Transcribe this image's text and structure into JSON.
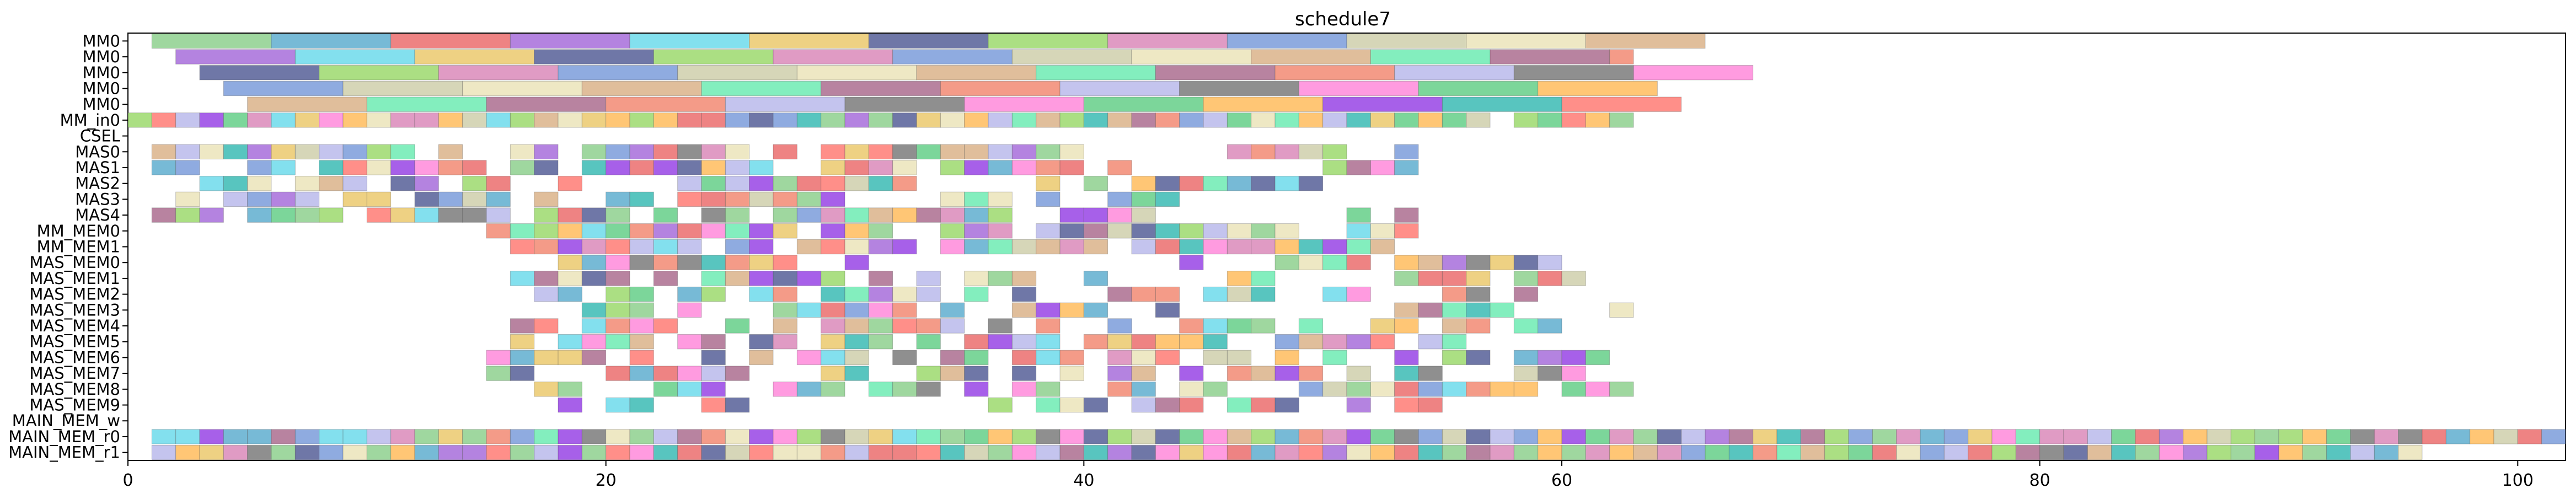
{
  "chart_data": {
    "type": "gantt",
    "title": "schedule7",
    "xlabel": "",
    "ylabel": "",
    "xlim": [
      0,
      102
    ],
    "x_ticks": [
      0,
      20,
      40,
      60,
      80,
      100
    ],
    "grid": false,
    "legend": "none",
    "rows": [
      "MM0",
      "MM0",
      "MM0",
      "MM0",
      "MM0",
      "MM_in0",
      "CSEL",
      "MAS0",
      "MAS1",
      "MAS2",
      "MAS3",
      "MAS4",
      "MM_MEM0",
      "MM_MEM1",
      "MAS_MEM0",
      "MAS_MEM1",
      "MAS_MEM2",
      "MAS_MEM3",
      "MAS_MEM4",
      "MAS_MEM5",
      "MAS_MEM6",
      "MAS_MEM7",
      "MAS_MEM8",
      "MAS_MEM9",
      "MAIN_MEM_w",
      "MAIN_MEM_r0",
      "MAIN_MEM_r1"
    ],
    "palette": [
      "#7fc97f",
      "#4aa3c8",
      "#e85a5a",
      "#9b59d6",
      "#5ad6e8",
      "#e8c25a",
      "#3f4a8a",
      "#8fd45a",
      "#d67ab0",
      "#6a8fd6",
      "#c8c8a0",
      "#e8e0b0",
      "#d6a87a",
      "#5ae8a8",
      "#a05a80",
      "#f07a60",
      "#b0b0e8",
      "#6a6a6a",
      "#ff7ad6",
      "#50c878",
      "#ffb347",
      "#8a2be2",
      "#20b2aa",
      "#ff6961"
    ],
    "generation": {
      "note_bands": "rows 0-4 long bands; rows 5,7-23,25,26 unit blocks",
      "band_rows": [
        {
          "row": 0,
          "start": 1,
          "end": 66,
          "seg": 5
        },
        {
          "row": 1,
          "start": 2,
          "end": 63,
          "seg": 5
        },
        {
          "row": 2,
          "start": 3,
          "end": 68,
          "seg": 5
        },
        {
          "row": 3,
          "start": 4,
          "end": 64,
          "seg": 5
        },
        {
          "row": 4,
          "start": 5,
          "end": 65,
          "seg": 5
        }
      ],
      "block_rows": [
        {
          "row": 5,
          "ranges": [
            [
              0,
              57
            ],
            [
              58,
              63
            ]
          ],
          "density": 1.0
        },
        {
          "row": 7,
          "ranges": [
            [
              1,
              28
            ],
            [
              28,
              40
            ],
            [
              46,
              55
            ]
          ],
          "density": 0.8
        },
        {
          "row": 8,
          "ranges": [
            [
              1,
              33
            ],
            [
              34,
              42
            ],
            [
              50,
              55
            ]
          ],
          "density": 0.8
        },
        {
          "row": 9,
          "ranges": [
            [
              1,
              34
            ],
            [
              36,
              50
            ]
          ],
          "density": 0.7
        },
        {
          "row": 10,
          "ranges": [
            [
              1,
              32
            ],
            [
              34,
              46
            ]
          ],
          "density": 0.7
        },
        {
          "row": 11,
          "ranges": [
            [
              1,
              38
            ],
            [
              39,
              43
            ],
            [
              51,
              54
            ]
          ],
          "density": 0.8
        },
        {
          "row": 12,
          "ranges": [
            [
              15,
              55
            ]
          ],
          "density": 0.85
        },
        {
          "row": 13,
          "ranges": [
            [
              15,
              55
            ]
          ],
          "density": 0.85
        },
        {
          "row": 14,
          "ranges": [
            [
              18,
              33
            ],
            [
              43,
              60
            ]
          ],
          "density": 0.6
        },
        {
          "row": 15,
          "ranges": [
            [
              16,
              41
            ],
            [
              46,
              62
            ]
          ],
          "density": 0.65
        },
        {
          "row": 16,
          "ranges": [
            [
              16,
              38
            ],
            [
              40,
              59
            ]
          ],
          "density": 0.6
        },
        {
          "row": 17,
          "ranges": [
            [
              17,
              35
            ],
            [
              37,
              63
            ]
          ],
          "density": 0.55
        },
        {
          "row": 18,
          "ranges": [
            [
              16,
              39
            ],
            [
              40,
              61
            ]
          ],
          "density": 0.6
        },
        {
          "row": 19,
          "ranges": [
            [
              16,
              46
            ],
            [
              48,
              57
            ]
          ],
          "density": 0.7
        },
        {
          "row": 20,
          "ranges": [
            [
              15,
              47
            ],
            [
              48,
              62
            ]
          ],
          "density": 0.7
        },
        {
          "row": 21,
          "ranges": [
            [
              15,
              38
            ],
            [
              39,
              62
            ]
          ],
          "density": 0.6
        },
        {
          "row": 22,
          "ranges": [
            [
              16,
              40
            ],
            [
              41,
              63
            ]
          ],
          "density": 0.6
        },
        {
          "row": 23,
          "ranges": [
            [
              16,
              31
            ],
            [
              35,
              56
            ]
          ],
          "density": 0.6
        },
        {
          "row": 25,
          "ranges": [
            [
              1,
              102
            ]
          ],
          "density": 1.0
        },
        {
          "row": 26,
          "ranges": [
            [
              1,
              96
            ]
          ],
          "density": 1.0
        }
      ]
    }
  }
}
